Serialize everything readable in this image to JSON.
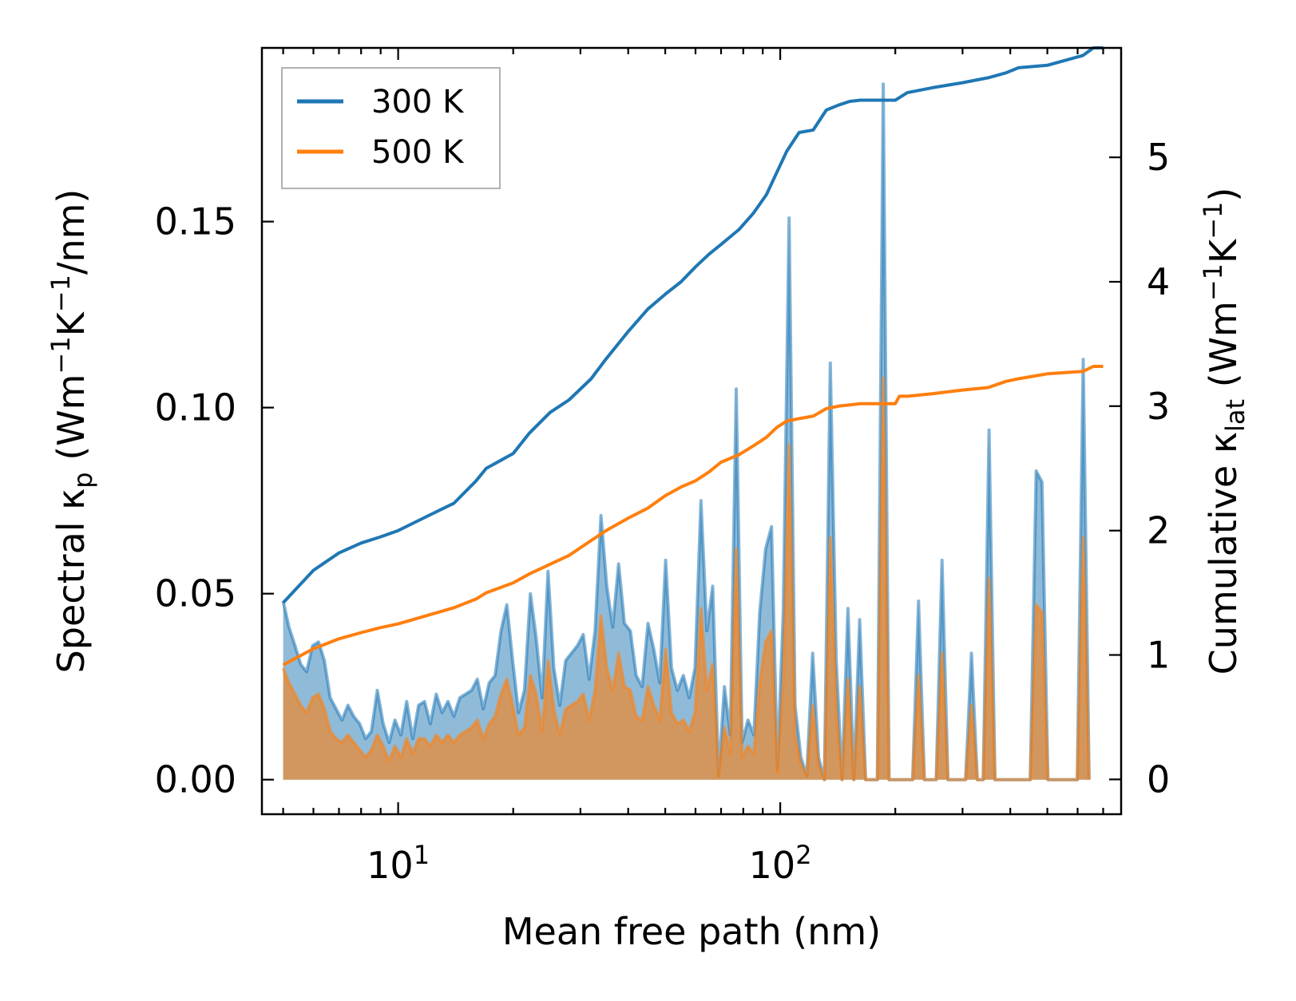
{
  "chart_data": {
    "type": "line",
    "xscale": "log",
    "xlabel": "Mean free path (nm)",
    "xlim": [
      4.4,
      780
    ],
    "x_tick_labels": [
      {
        "value": 10,
        "base": "10",
        "exp": "1"
      },
      {
        "value": 100,
        "base": "10",
        "exp": "2"
      }
    ],
    "ylabel_left": {
      "prefix": "Spectral κ",
      "sub": "p",
      "unit": "(Wm",
      "sup1": "−1",
      "k": "K",
      "sup2": "−1",
      "tail": "/nm)"
    },
    "ylabel_right": {
      "prefix": "Cumulative κ",
      "sub": "lat",
      "unit": "(Wm",
      "sup1": "−1",
      "k": "K",
      "sup2": "−1",
      "tail": ")"
    },
    "ylim_left": [
      -0.0093,
      0.1967
    ],
    "ylim_right": [
      -0.28,
      5.88
    ],
    "yticks_left": [
      "0.00",
      "0.05",
      "0.10",
      "0.15"
    ],
    "yticks_right": [
      "0",
      "1",
      "2",
      "3",
      "4",
      "5"
    ],
    "legend": {
      "position": "top-left",
      "entries": [
        "300 K",
        "500 K"
      ]
    },
    "colors": {
      "300 K": "#1f77b4",
      "500 K": "#ff7f0e"
    },
    "spectral": {
      "note": "shaded spectral kappa_p (left axis)",
      "x": [
        5.0,
        5.18,
        5.37,
        5.56,
        5.76,
        5.97,
        6.19,
        6.41,
        6.64,
        6.88,
        7.13,
        7.39,
        7.65,
        7.93,
        8.22,
        8.51,
        8.82,
        9.14,
        9.47,
        9.81,
        10.17,
        10.53,
        10.92,
        11.31,
        11.72,
        12.14,
        12.58,
        13.03,
        13.5,
        13.99,
        14.5,
        15.02,
        15.56,
        16.12,
        16.7,
        17.31,
        17.93,
        18.58,
        19.25,
        19.94,
        20.66,
        21.41,
        22.18,
        22.98,
        23.81,
        24.67,
        25.56,
        26.48,
        27.44,
        28.43,
        29.45,
        30.51,
        31.62,
        32.76,
        33.94,
        35.16,
        36.43,
        37.75,
        39.11,
        40.52,
        41.98,
        43.5,
        45.07,
        46.69,
        48.38,
        50.12,
        51.93,
        53.8,
        55.74,
        57.76,
        59.84,
        62.0,
        64.24,
        66.56,
        68.96,
        71.44,
        74.02,
        76.69,
        79.46,
        82.32,
        85.29,
        88.37,
        91.56,
        94.86,
        98.28,
        101.82,
        105.5,
        109.3,
        113.24,
        117.33,
        121.56,
        125.95,
        130.49,
        135.2,
        140.07,
        145.13,
        150.36,
        155.79,
        161.41,
        167.23,
        173.26,
        179.51,
        185.99,
        192.7,
        199.65,
        206.85,
        214.32,
        222.05,
        230.06,
        238.36,
        246.96,
        255.87,
        265.1,
        274.66,
        284.57,
        294.84,
        305.48,
        316.5,
        327.91,
        339.74,
        352.0,
        364.7,
        377.86,
        391.49,
        405.61,
        420.25,
        435.41,
        451.12,
        467.39,
        484.25,
        501.72,
        519.82,
        538.58,
        558.01,
        578.14,
        598.99,
        620.6,
        643.0,
        666.19,
        690.23,
        715.13
      ],
      "300 K": [
        0.048,
        0.041,
        0.036,
        0.031,
        0.029,
        0.036,
        0.037,
        0.032,
        0.022,
        0.019,
        0.016,
        0.02,
        0.017,
        0.015,
        0.011,
        0.013,
        0.024,
        0.015,
        0.01,
        0.016,
        0.012,
        0.021,
        0.011,
        0.02,
        0.021,
        0.015,
        0.023,
        0.018,
        0.021,
        0.017,
        0.022,
        0.023,
        0.024,
        0.027,
        0.019,
        0.026,
        0.028,
        0.04,
        0.047,
        0.032,
        0.018,
        0.024,
        0.05,
        0.038,
        0.022,
        0.056,
        0.03,
        0.02,
        0.032,
        0.034,
        0.036,
        0.039,
        0.027,
        0.04,
        0.071,
        0.052,
        0.041,
        0.058,
        0.042,
        0.04,
        0.028,
        0.025,
        0.042,
        0.035,
        0.026,
        0.059,
        0.03,
        0.024,
        0.028,
        0.022,
        0.03,
        0.075,
        0.04,
        0.052,
        0.001,
        0.025,
        0.012,
        0.105,
        0.01,
        0.016,
        0.012,
        0.045,
        0.062,
        0.068,
        0.003,
        0.045,
        0.151,
        0.02,
        0.006,
        0.001,
        0.034,
        0.006,
        0.0,
        0.112,
        0.032,
        0.0,
        0.046,
        0.0,
        0.043,
        0.0,
        0.0,
        0.0,
        0.187,
        0.0,
        0.0,
        0.0,
        0.0,
        0.0,
        0.048,
        0.0,
        0.0,
        0.0,
        0.059,
        0.0,
        0.0,
        0.0,
        0.0,
        0.034,
        0.0,
        0.0,
        0.094,
        0.0,
        0.0,
        0.0,
        0.0,
        0.0,
        0.0,
        0.0,
        0.083,
        0.08,
        0.0,
        0.0,
        0.0,
        0.0,
        0.0,
        0.0,
        0.113,
        0.0
      ],
      "500 K": [
        0.03,
        0.026,
        0.023,
        0.02,
        0.018,
        0.022,
        0.023,
        0.019,
        0.013,
        0.011,
        0.01,
        0.012,
        0.01,
        0.008,
        0.006,
        0.008,
        0.012,
        0.009,
        0.005,
        0.009,
        0.006,
        0.011,
        0.007,
        0.011,
        0.011,
        0.009,
        0.012,
        0.01,
        0.012,
        0.01,
        0.012,
        0.013,
        0.014,
        0.016,
        0.011,
        0.015,
        0.017,
        0.023,
        0.027,
        0.02,
        0.012,
        0.014,
        0.028,
        0.023,
        0.013,
        0.032,
        0.019,
        0.012,
        0.019,
        0.02,
        0.021,
        0.023,
        0.016,
        0.024,
        0.044,
        0.03,
        0.024,
        0.034,
        0.025,
        0.024,
        0.017,
        0.016,
        0.025,
        0.02,
        0.016,
        0.035,
        0.018,
        0.015,
        0.016,
        0.013,
        0.018,
        0.046,
        0.024,
        0.031,
        0.001,
        0.014,
        0.007,
        0.062,
        0.006,
        0.009,
        0.007,
        0.026,
        0.037,
        0.04,
        0.002,
        0.026,
        0.09,
        0.012,
        0.004,
        0.001,
        0.02,
        0.004,
        0.0,
        0.065,
        0.019,
        0.0,
        0.027,
        0.0,
        0.025,
        0.0,
        0.0,
        0.0,
        0.108,
        0.0,
        0.0,
        0.0,
        0.0,
        0.0,
        0.028,
        0.0,
        0.0,
        0.0,
        0.034,
        0.0,
        0.0,
        0.0,
        0.0,
        0.02,
        0.0,
        0.0,
        0.054,
        0.0,
        0.0,
        0.0,
        0.0,
        0.0,
        0.0,
        0.0,
        0.047,
        0.045,
        0.0,
        0.0,
        0.0,
        0.0,
        0.0,
        0.0,
        0.065,
        0.0
      ]
    },
    "cumulative": {
      "note": "cumulative kappa_lat (right axis)",
      "300 K": {
        "x": [
          5.0,
          6.0,
          7.0,
          8.0,
          9.0,
          10.0,
          12.0,
          14.0,
          16.0,
          17.0,
          20.0,
          22.0,
          25.0,
          28.0,
          32.0,
          35.0,
          40.0,
          45.0,
          50.0,
          55.0,
          60.0,
          65.0,
          70.0,
          78.0,
          85.0,
          92.0,
          98.0,
          104.0,
          112.0,
          122.0,
          132.0,
          142.0,
          152.0,
          162.0,
          175.0,
          200.0,
          205.0,
          215.0,
          250.0,
          300.0,
          350.0,
          390.0,
          420.0,
          500.0,
          620.0,
          660.0,
          700.0
        ],
        "y": [
          1.42,
          1.68,
          1.82,
          1.9,
          1.95,
          2.0,
          2.12,
          2.22,
          2.4,
          2.5,
          2.62,
          2.78,
          2.95,
          3.05,
          3.22,
          3.38,
          3.6,
          3.78,
          3.9,
          4.0,
          4.12,
          4.22,
          4.3,
          4.42,
          4.55,
          4.7,
          4.88,
          5.05,
          5.2,
          5.22,
          5.38,
          5.42,
          5.45,
          5.46,
          5.46,
          5.46,
          5.48,
          5.52,
          5.56,
          5.6,
          5.64,
          5.68,
          5.72,
          5.74,
          5.82,
          5.88,
          5.88
        ]
      },
      "500 K": {
        "x": [
          5.0,
          6.0,
          7.0,
          8.0,
          9.0,
          10.0,
          12.0,
          14.0,
          16.0,
          17.0,
          20.0,
          22.0,
          25.0,
          28.0,
          32.0,
          35.0,
          40.0,
          45.0,
          50.0,
          55.0,
          60.0,
          65.0,
          70.0,
          78.0,
          85.0,
          92.0,
          98.0,
          104.0,
          112.0,
          122.0,
          132.0,
          142.0,
          152.0,
          162.0,
          175.0,
          200.0,
          205.0,
          215.0,
          250.0,
          300.0,
          350.0,
          390.0,
          420.0,
          500.0,
          620.0,
          660.0,
          700.0
        ],
        "y": [
          0.92,
          1.05,
          1.13,
          1.18,
          1.22,
          1.25,
          1.32,
          1.38,
          1.45,
          1.5,
          1.58,
          1.65,
          1.73,
          1.8,
          1.92,
          2.0,
          2.1,
          2.18,
          2.28,
          2.35,
          2.4,
          2.47,
          2.55,
          2.61,
          2.68,
          2.75,
          2.83,
          2.88,
          2.9,
          2.92,
          2.98,
          3.0,
          3.01,
          3.02,
          3.02,
          3.02,
          3.08,
          3.08,
          3.1,
          3.13,
          3.15,
          3.2,
          3.22,
          3.26,
          3.28,
          3.32,
          3.32
        ]
      }
    }
  }
}
